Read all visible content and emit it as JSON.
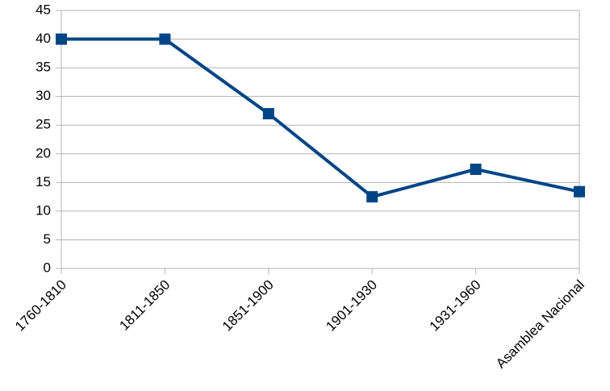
{
  "chart_data": {
    "type": "line",
    "categories": [
      "1760-1810",
      "1811-1850",
      "1851-1900",
      "1901-1930",
      "1931-1960",
      "Asamblea Nacional"
    ],
    "series": [
      {
        "color": "#004586",
        "values": [
          40,
          40,
          27,
          12.5,
          17.3,
          13.4
        ]
      }
    ],
    "ylim": [
      0,
      45
    ],
    "yticks": [
      0,
      5,
      10,
      15,
      20,
      25,
      30,
      35,
      40,
      45
    ],
    "grid": true,
    "marker": "square"
  }
}
